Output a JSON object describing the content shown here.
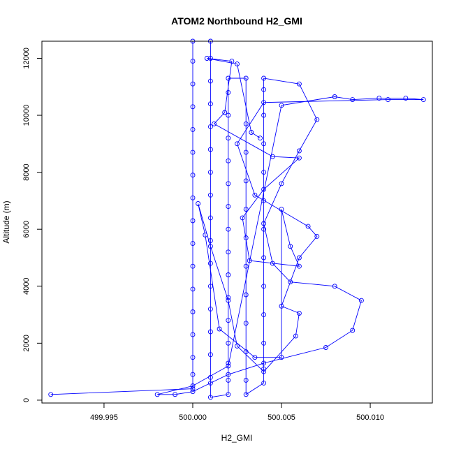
{
  "chart_data": {
    "type": "scatter",
    "title": "ATOM2 Northbound H2_GMI",
    "xlabel": "H2_GMI",
    "ylabel": "Altitude (m)",
    "xlim": [
      499.9915,
      500.0135
    ],
    "ylim": [
      -100,
      12600
    ],
    "x_ticks": [
      499.995,
      500.0,
      500.005,
      500.01
    ],
    "x_tick_labels": [
      "499.995",
      "500.000",
      "500.005",
      "500.010"
    ],
    "y_ticks": [
      0,
      2000,
      4000,
      6000,
      8000,
      10000,
      12000
    ],
    "y_tick_labels": [
      "0",
      "2000",
      "4000",
      "6000",
      "8000",
      "10000",
      "12000"
    ],
    "grid": false,
    "series": [
      {
        "color": "#0000ff",
        "points": [
          [
            499.992,
            200
          ],
          [
            500.0,
            400
          ],
          [
            500.0,
            900
          ],
          [
            500.0,
            1500
          ],
          [
            500.0,
            2300
          ],
          [
            500.0,
            3100
          ],
          [
            500.0,
            3900
          ],
          [
            500.0,
            4700
          ],
          [
            500.0,
            5500
          ],
          [
            500.0,
            6300
          ],
          [
            500.0,
            7100
          ],
          [
            500.0,
            7900
          ],
          [
            500.0,
            8700
          ],
          [
            500.0,
            9500
          ],
          [
            500.0,
            10300
          ],
          [
            500.0,
            11100
          ],
          [
            500.0,
            11900
          ],
          [
            500.0,
            12600
          ],
          [
            500.001,
            12600
          ],
          [
            500.001,
            12000
          ],
          [
            500.001,
            11200
          ],
          [
            500.001,
            10400
          ],
          [
            500.001,
            9600
          ],
          [
            500.001,
            8800
          ],
          [
            500.001,
            8000
          ],
          [
            500.001,
            7200
          ],
          [
            500.001,
            6400
          ],
          [
            500.001,
            5600
          ],
          [
            500.001,
            4800
          ],
          [
            500.001,
            4000
          ],
          [
            500.001,
            3200
          ],
          [
            500.001,
            2400
          ],
          [
            500.001,
            1600
          ],
          [
            500.001,
            800
          ],
          [
            500.001,
            100
          ],
          [
            500.002,
            200
          ],
          [
            500.002,
            700
          ],
          [
            500.002,
            1300
          ],
          [
            500.002,
            2000
          ],
          [
            500.002,
            2800
          ],
          [
            500.002,
            3600
          ],
          [
            500.002,
            4400
          ],
          [
            500.002,
            5200
          ],
          [
            500.002,
            6000
          ],
          [
            500.002,
            6800
          ],
          [
            500.002,
            7600
          ],
          [
            500.002,
            8400
          ],
          [
            500.002,
            9200
          ],
          [
            500.002,
            10000
          ],
          [
            500.002,
            10800
          ],
          [
            500.002,
            11300
          ],
          [
            500.003,
            11300
          ],
          [
            500.003,
            9700
          ],
          [
            500.003,
            8700
          ],
          [
            500.003,
            7700
          ],
          [
            500.003,
            6700
          ],
          [
            500.003,
            5700
          ],
          [
            500.003,
            4700
          ],
          [
            500.003,
            3700
          ],
          [
            500.003,
            2700
          ],
          [
            500.003,
            1700
          ],
          [
            500.003,
            700
          ],
          [
            500.003,
            200
          ],
          [
            500.004,
            600
          ],
          [
            500.004,
            1100
          ],
          [
            500.004,
            2000
          ],
          [
            500.004,
            3000
          ],
          [
            500.004,
            4000
          ],
          [
            500.004,
            5000
          ],
          [
            500.004,
            6000
          ],
          [
            500.004,
            7000
          ],
          [
            500.004,
            8000
          ],
          [
            500.004,
            9000
          ],
          [
            500.004,
            10000
          ],
          [
            500.004,
            10900
          ],
          [
            500.004,
            11300
          ],
          [
            500.006,
            11100
          ],
          [
            500.007,
            9850
          ],
          [
            500.006,
            8750
          ],
          [
            500.005,
            7600
          ],
          [
            500.004,
            6200
          ],
          [
            500.0045,
            4800
          ],
          [
            500.0055,
            4150
          ],
          [
            500.008,
            4000
          ],
          [
            500.0095,
            3500
          ],
          [
            500.009,
            2450
          ],
          [
            500.0075,
            1850
          ],
          [
            500.004,
            1300
          ],
          [
            500.002,
            900
          ],
          [
            500.001,
            600
          ],
          [
            500.0,
            300
          ],
          [
            499.999,
            200
          ],
          [
            499.998,
            200
          ],
          [
            500.0,
            500
          ],
          [
            500.002,
            1200
          ],
          [
            500.005,
            10350
          ],
          [
            500.008,
            10650
          ],
          [
            500.009,
            10550
          ],
          [
            500.0105,
            10600
          ],
          [
            500.012,
            10600
          ],
          [
            500.013,
            10550
          ],
          [
            500.011,
            10550
          ],
          [
            500.004,
            10450
          ],
          [
            500.0025,
            9000
          ],
          [
            500.0035,
            7200
          ],
          [
            500.0065,
            6100
          ],
          [
            500.007,
            5750
          ],
          [
            500.006,
            5000
          ],
          [
            500.005,
            3300
          ],
          [
            500.006,
            3050
          ],
          [
            500.0058,
            2250
          ],
          [
            500.004,
            1000
          ],
          [
            500.0025,
            1900
          ],
          [
            500.002,
            3500
          ],
          [
            500.001,
            5400
          ],
          [
            500.0003,
            6900
          ],
          [
            500.0007,
            5800
          ],
          [
            500.0015,
            2500
          ],
          [
            500.0035,
            1500
          ],
          [
            500.005,
            1500
          ],
          [
            500.005,
            6700
          ],
          [
            500.0055,
            5400
          ],
          [
            500.006,
            4700
          ],
          [
            500.0032,
            4900
          ],
          [
            500.0028,
            6400
          ],
          [
            500.004,
            7400
          ],
          [
            500.006,
            8500
          ],
          [
            500.0045,
            8550
          ],
          [
            500.0012,
            9700
          ],
          [
            500.0018,
            10100
          ],
          [
            500.0022,
            11900
          ],
          [
            500.0008,
            12000
          ],
          [
            500.0025,
            11800
          ],
          [
            500.0033,
            9400
          ],
          [
            500.0038,
            9200
          ]
        ]
      }
    ]
  }
}
